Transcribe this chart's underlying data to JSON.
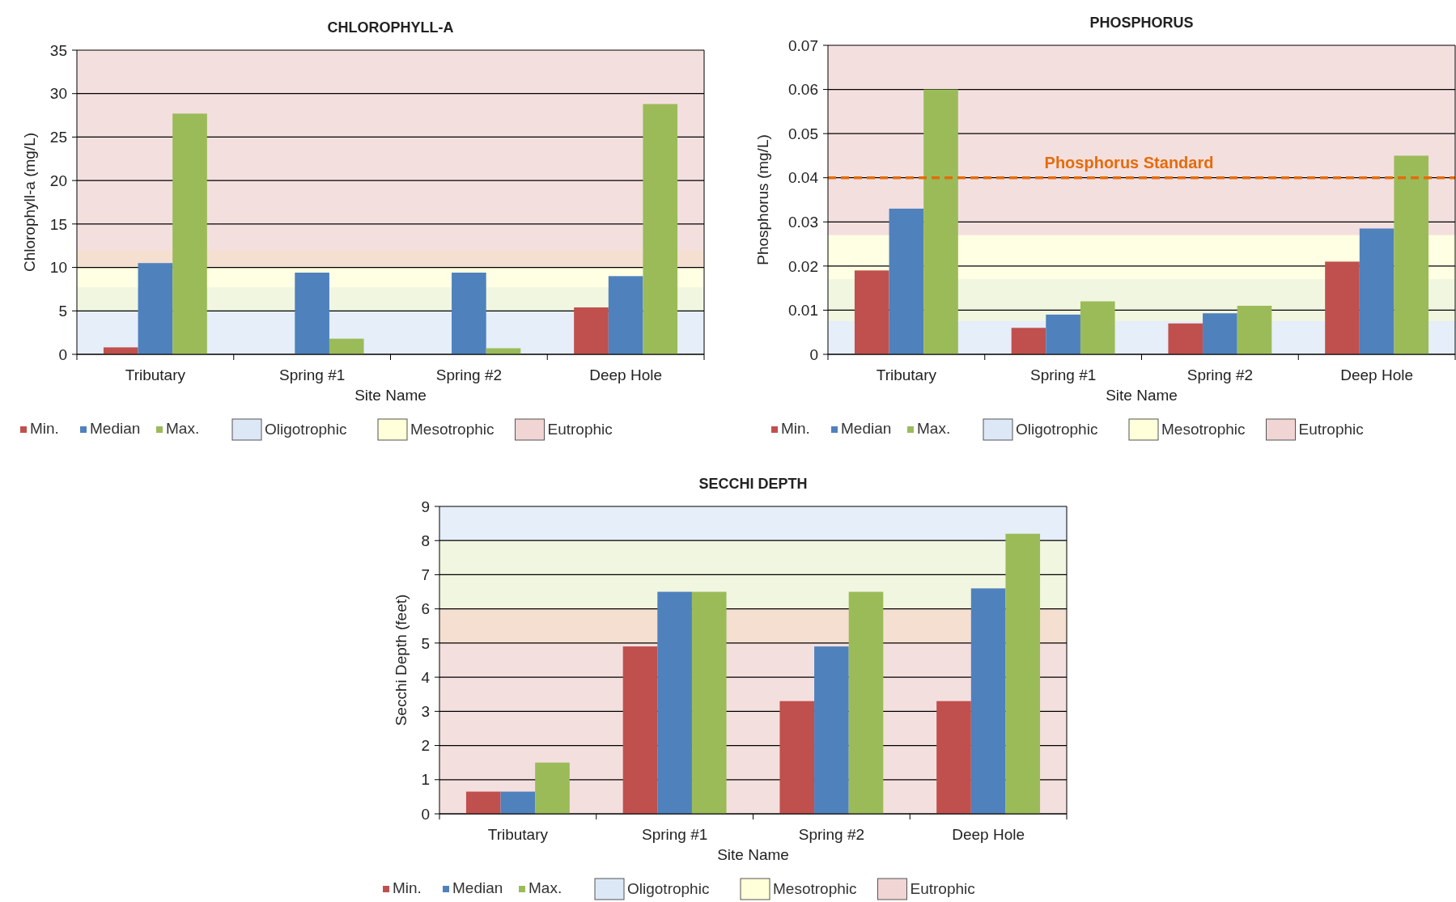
{
  "chart_data": [
    {
      "type": "bar",
      "title": "CHLOROPHYLL-A",
      "xlabel": "Site Name",
      "ylabel": "Chlorophyll-a  (mg/L)",
      "categories": [
        "Tributary",
        "Spring #1",
        "Spring #2",
        "Deep Hole"
      ],
      "series": [
        {
          "name": "Min.",
          "color": "#c0504d",
          "values": [
            0.8,
            null,
            null,
            5.4
          ]
        },
        {
          "name": "Median",
          "color": "#4f81bd",
          "values": [
            10.5,
            9.4,
            9.4,
            9.0
          ]
        },
        {
          "name": "Max.",
          "color": "#9bbb59",
          "values": [
            27.7,
            1.8,
            0.7,
            28.8
          ]
        }
      ],
      "ylim": [
        0,
        35
      ],
      "yticks": [
        0,
        5,
        10,
        15,
        20,
        25,
        30,
        35
      ],
      "grid": "y",
      "legend": "bottom",
      "bands": [
        {
          "axis": "y",
          "from": 0,
          "to": 7.7,
          "label": "Oligotrophic",
          "color": "#c6d9f1"
        },
        {
          "axis": "y",
          "from": 5,
          "to": 12,
          "label": "Mesotrophic",
          "color": "#ffffc0"
        },
        {
          "axis": "y",
          "from": 10,
          "to": 35,
          "label": "Eutrophic",
          "color": "#e6b9b8"
        }
      ]
    },
    {
      "type": "bar",
      "title": "PHOSPHORUS",
      "xlabel": "Site Name",
      "ylabel": "Phosphorus (mg/L)",
      "categories": [
        "Tributary",
        "Spring #1",
        "Spring #2",
        "Deep Hole"
      ],
      "series": [
        {
          "name": "Min.",
          "color": "#c0504d",
          "values": [
            0.019,
            0.006,
            0.007,
            0.021
          ]
        },
        {
          "name": "Median",
          "color": "#4f81bd",
          "values": [
            0.033,
            0.009,
            0.0093,
            0.0285
          ]
        },
        {
          "name": "Max.",
          "color": "#9bbb59",
          "values": [
            0.06,
            0.012,
            0.011,
            0.045
          ]
        }
      ],
      "ylim": [
        0,
        0.07
      ],
      "yticks": [
        0,
        0.01,
        0.02,
        0.03,
        0.04,
        0.05,
        0.06,
        0.07
      ],
      "grid": "y",
      "legend": "bottom",
      "ref_lines": [
        {
          "axis": "y",
          "value": 0.04,
          "label": "Phosphorus Standard",
          "color": "#e46c0a",
          "line_style": "dashed"
        }
      ],
      "bands": [
        {
          "axis": "y",
          "from": 0,
          "to": 0.017,
          "label": "Oligotrophic",
          "color": "#c6d9f1"
        },
        {
          "axis": "y",
          "from": 0.0075,
          "to": 0.027,
          "label": "Mesotrophic",
          "color": "#ffffc0"
        },
        {
          "axis": "y",
          "from": 0.027,
          "to": 0.07,
          "label": "Eutrophic",
          "color": "#e6b9b8"
        }
      ]
    },
    {
      "type": "bar",
      "title": "SECCHI  DEPTH",
      "xlabel": "Site Name",
      "ylabel": "Secchi Depth (feet)",
      "categories": [
        "Tributary",
        "Spring #1",
        "Spring #2",
        "Deep Hole"
      ],
      "series": [
        {
          "name": "Min.",
          "color": "#c0504d",
          "values": [
            0.65,
            4.9,
            3.3,
            3.3
          ]
        },
        {
          "name": "Median",
          "color": "#4f81bd",
          "values": [
            0.65,
            6.5,
            4.9,
            6.6
          ]
        },
        {
          "name": "Max.",
          "color": "#9bbb59",
          "values": [
            1.5,
            6.5,
            6.5,
            8.2
          ]
        }
      ],
      "ylim": [
        0,
        9
      ],
      "yticks": [
        0,
        1,
        2,
        3,
        4,
        5,
        6,
        7,
        8,
        9
      ],
      "grid": "y",
      "legend": "bottom",
      "bands": [
        {
          "axis": "y",
          "from": 6,
          "to": 9,
          "label": "Oligotrophic",
          "color": "#c6d9f1"
        },
        {
          "axis": "y",
          "from": 5,
          "to": 8,
          "label": "Mesotrophic",
          "color": "#ffffc0"
        },
        {
          "axis": "y",
          "from": 0,
          "to": 6,
          "label": "Eutrophic",
          "color": "#e6b9b8"
        }
      ]
    }
  ]
}
